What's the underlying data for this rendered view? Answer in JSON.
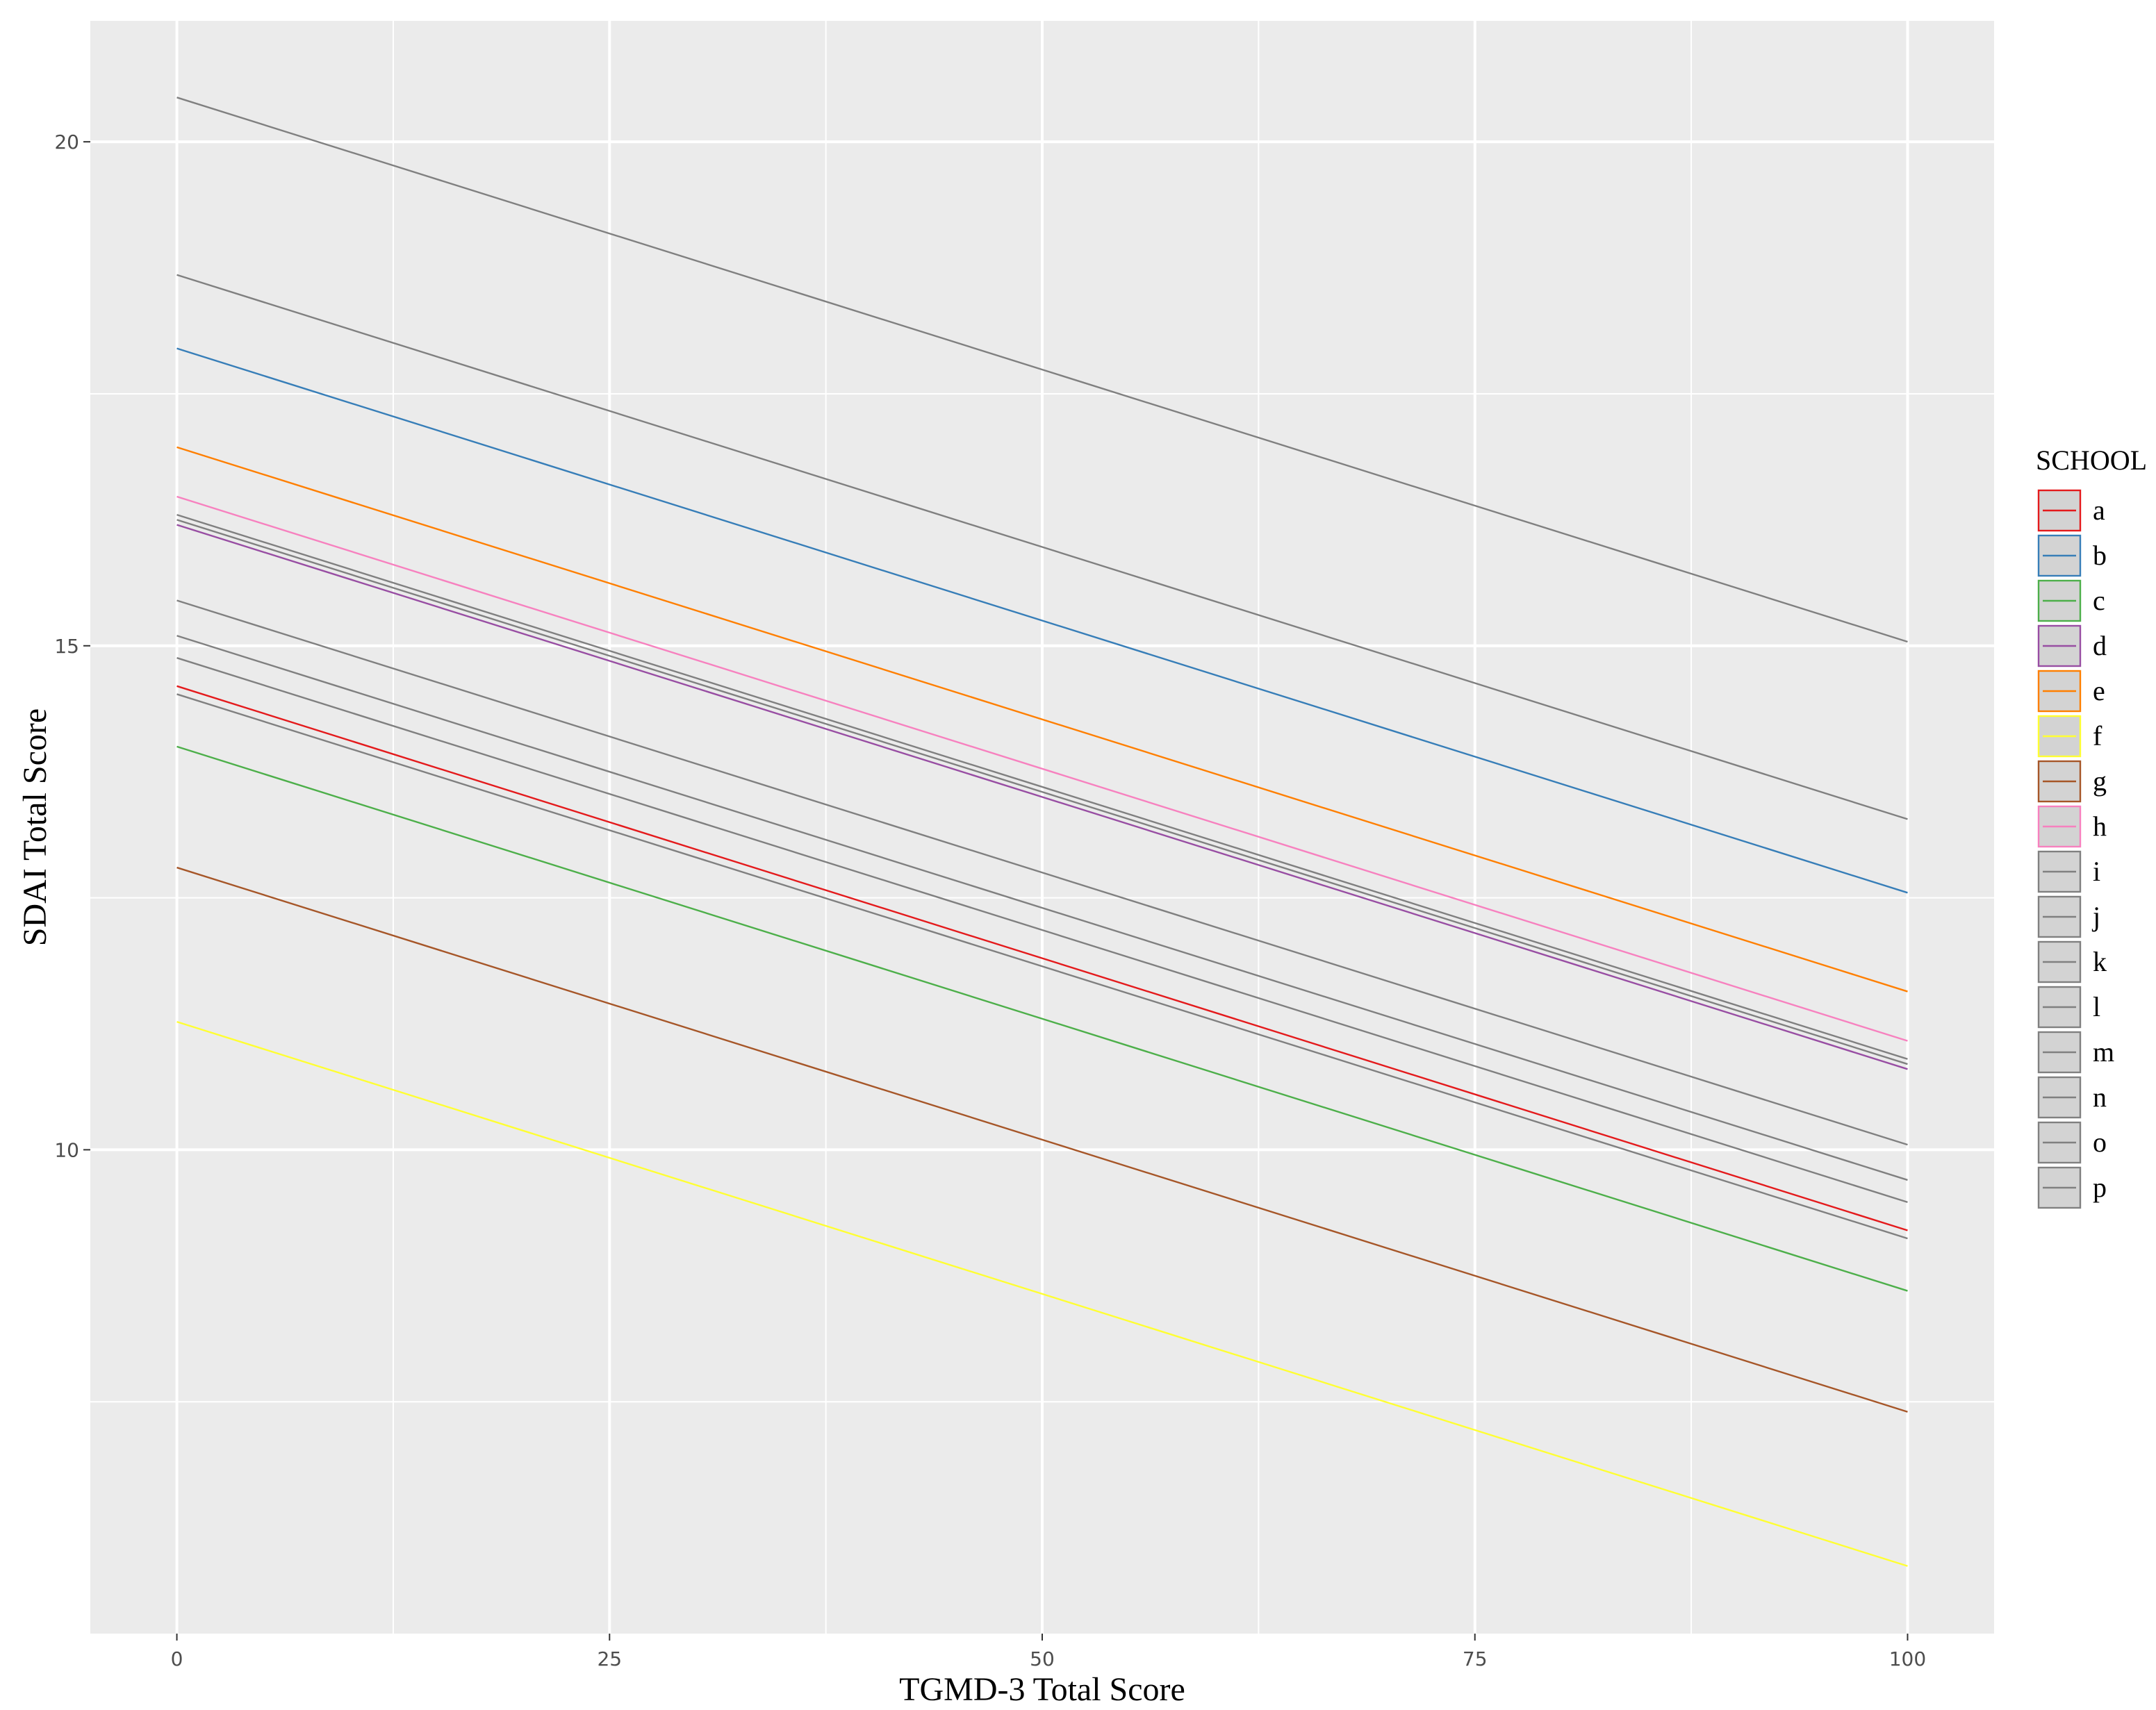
{
  "chart_data": {
    "type": "line",
    "title": "",
    "xlabel": "TGMD-3 Total Score",
    "ylabel": "SDAI Total Score",
    "xlim": [
      -5,
      105
    ],
    "ylim": [
      5.2,
      21.2
    ],
    "x_ticks": [
      0,
      25,
      50,
      75,
      100
    ],
    "x_tick_labels": [
      "0",
      "25",
      "50",
      "75",
      "100"
    ],
    "y_ticks": [
      10,
      15,
      20
    ],
    "y_tick_labels": [
      "10",
      "15",
      "20"
    ],
    "grid": true,
    "legend": {
      "title": "SCHOOL",
      "position": "right"
    },
    "panel_background": "#ebebeb",
    "grid_color": "#ffffff",
    "series": [
      {
        "name": "a",
        "x": [
          0,
          100
        ],
        "y": [
          14.6,
          9.2
        ],
        "color": "#e41a1c"
      },
      {
        "name": "b",
        "x": [
          0,
          100
        ],
        "y": [
          17.95,
          12.55
        ],
        "color": "#377eb8"
      },
      {
        "name": "c",
        "x": [
          0,
          100
        ],
        "y": [
          14.0,
          8.6
        ],
        "color": "#4daf4a"
      },
      {
        "name": "d",
        "x": [
          0,
          100
        ],
        "y": [
          16.2,
          10.8
        ],
        "color": "#984ea3"
      },
      {
        "name": "e",
        "x": [
          0,
          100
        ],
        "y": [
          16.97,
          11.57
        ],
        "color": "#ff7f00"
      },
      {
        "name": "f",
        "x": [
          0,
          100
        ],
        "y": [
          11.27,
          5.87
        ],
        "color": "#ffff33"
      },
      {
        "name": "g",
        "x": [
          0,
          100
        ],
        "y": [
          12.8,
          7.4
        ],
        "color": "#a65628"
      },
      {
        "name": "h",
        "x": [
          0,
          100
        ],
        "y": [
          16.48,
          11.08
        ],
        "color": "#f781bf"
      },
      {
        "name": "i",
        "x": [
          0,
          100
        ],
        "y": [
          20.44,
          15.04
        ],
        "color": "#808080"
      },
      {
        "name": "j",
        "x": [
          0,
          100
        ],
        "y": [
          18.68,
          13.28
        ],
        "color": "#808080"
      },
      {
        "name": "k",
        "x": [
          0,
          100
        ],
        "y": [
          16.3,
          10.9
        ],
        "color": "#808080"
      },
      {
        "name": "l",
        "x": [
          0,
          100
        ],
        "y": [
          16.25,
          10.85
        ],
        "color": "#808080"
      },
      {
        "name": "m",
        "x": [
          0,
          100
        ],
        "y": [
          15.45,
          10.05
        ],
        "color": "#808080"
      },
      {
        "name": "n",
        "x": [
          0,
          100
        ],
        "y": [
          15.1,
          9.7
        ],
        "color": "#808080"
      },
      {
        "name": "o",
        "x": [
          0,
          100
        ],
        "y": [
          14.88,
          9.48
        ],
        "color": "#808080"
      },
      {
        "name": "p",
        "x": [
          0,
          100
        ],
        "y": [
          14.52,
          9.12
        ],
        "color": "#808080"
      }
    ]
  }
}
